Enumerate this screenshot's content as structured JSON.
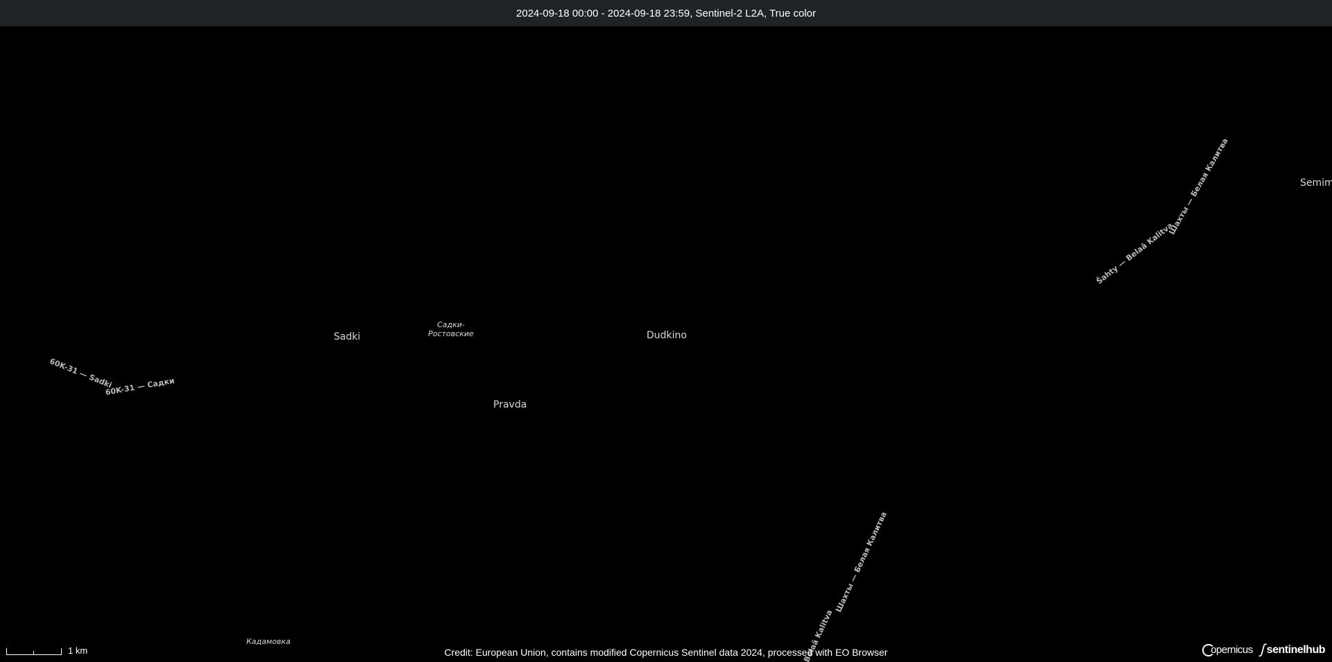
{
  "header": {
    "title": "2024-09-18 00:00 - 2024-09-18 23:59, Sentinel-2 L2A, True color"
  },
  "map": {
    "places": {
      "sadki": "Sadki",
      "sadki_rostovskie": "Садки-Ростовские",
      "dudkino": "Dudkino",
      "pravda": "Pravda",
      "kadamovka": "Кадамовка",
      "semim": "Semim"
    },
    "roads": {
      "road_60k31_a": "60K-31 — Sadki",
      "road_60k31_b": "60K-31 — Садки",
      "road_shahty_upper_a": "Šahty — Belaâ Kalitva",
      "road_shahty_upper_b": "Шахты — Белая Калитва",
      "road_shahty_lower_a": "Belaâ Kalitva",
      "road_shahty_lower_b": "Шахты — Белая Калитва"
    }
  },
  "scale": {
    "label": "1 km"
  },
  "credit": "Credit: European Union, contains modified Copernicus Sentinel data 2024, processed with EO Browser",
  "logos": {
    "copernicus": "opernicus",
    "sentinelhub": "sentinelhub"
  }
}
